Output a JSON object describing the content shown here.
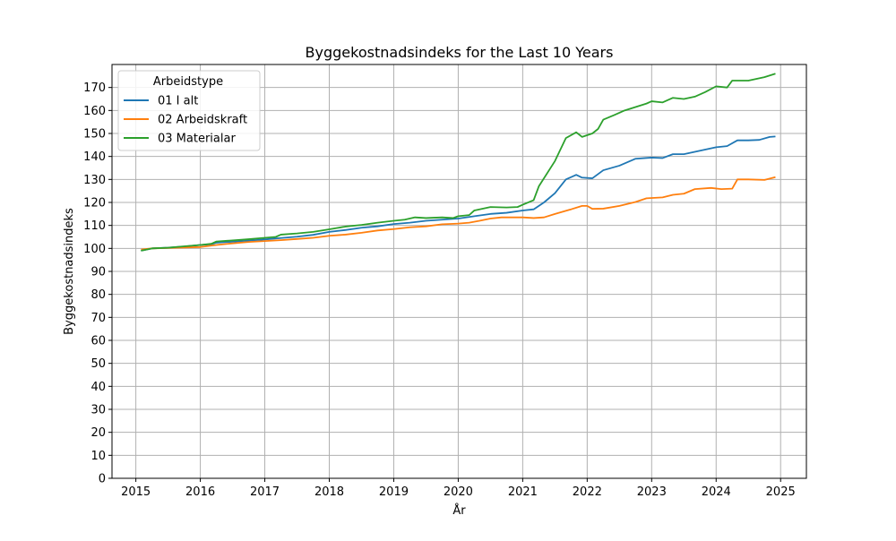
{
  "chart_data": {
    "type": "line",
    "title": "Byggekostnadsindeks for the Last 10 Years",
    "xlabel": "År",
    "ylabel": "Byggekostnadsindeks",
    "xlim": [
      2014.63,
      2025.4
    ],
    "ylim": [
      0,
      180
    ],
    "xticks": [
      2015,
      2016,
      2017,
      2018,
      2019,
      2020,
      2021,
      2022,
      2023,
      2024,
      2025
    ],
    "yticks": [
      0,
      10,
      20,
      30,
      40,
      50,
      60,
      70,
      80,
      90,
      100,
      110,
      120,
      130,
      140,
      150,
      160,
      170
    ],
    "grid": true,
    "legend": {
      "title": "Arbeidstype",
      "placement": "upper-left"
    },
    "series": [
      {
        "name": "01 I alt",
        "color": "#1f77b4",
        "points": [
          [
            2015.08,
            99.0
          ],
          [
            2015.25,
            100.0
          ],
          [
            2015.5,
            100.3
          ],
          [
            2015.75,
            100.8
          ],
          [
            2016.0,
            101.5
          ],
          [
            2016.17,
            101.8
          ],
          [
            2016.25,
            102.5
          ],
          [
            2016.5,
            102.9
          ],
          [
            2016.75,
            103.4
          ],
          [
            2017.0,
            103.9
          ],
          [
            2017.25,
            104.5
          ],
          [
            2017.5,
            105.1
          ],
          [
            2017.75,
            105.9
          ],
          [
            2018.0,
            107.2
          ],
          [
            2018.25,
            108.0
          ],
          [
            2018.5,
            109.0
          ],
          [
            2018.75,
            109.6
          ],
          [
            2019.0,
            110.6
          ],
          [
            2019.25,
            111.2
          ],
          [
            2019.5,
            112.0
          ],
          [
            2019.75,
            112.5
          ],
          [
            2020.0,
            113.0
          ],
          [
            2020.25,
            114.0
          ],
          [
            2020.5,
            115.0
          ],
          [
            2020.75,
            115.5
          ],
          [
            2021.0,
            116.5
          ],
          [
            2021.17,
            117.0
          ],
          [
            2021.33,
            120.0
          ],
          [
            2021.5,
            124.0
          ],
          [
            2021.67,
            130.0
          ],
          [
            2021.83,
            132.0
          ],
          [
            2021.92,
            130.8
          ],
          [
            2022.08,
            130.5
          ],
          [
            2022.25,
            134.0
          ],
          [
            2022.5,
            136.0
          ],
          [
            2022.75,
            139.0
          ],
          [
            2023.0,
            139.5
          ],
          [
            2023.17,
            139.3
          ],
          [
            2023.33,
            141.0
          ],
          [
            2023.5,
            141.0
          ],
          [
            2023.75,
            142.5
          ],
          [
            2024.0,
            144.0
          ],
          [
            2024.17,
            144.5
          ],
          [
            2024.33,
            147.0
          ],
          [
            2024.5,
            147.0
          ],
          [
            2024.67,
            147.2
          ],
          [
            2024.83,
            148.5
          ],
          [
            2024.92,
            148.7
          ]
        ]
      },
      {
        "name": "02 Arbeidskraft",
        "color": "#ff7f0e",
        "points": [
          [
            2015.08,
            99.5
          ],
          [
            2015.25,
            100.0
          ],
          [
            2015.5,
            100.2
          ],
          [
            2015.75,
            100.4
          ],
          [
            2016.0,
            100.6
          ],
          [
            2016.25,
            101.5
          ],
          [
            2016.5,
            102.2
          ],
          [
            2016.75,
            102.8
          ],
          [
            2017.0,
            103.2
          ],
          [
            2017.25,
            103.6
          ],
          [
            2017.5,
            104.1
          ],
          [
            2017.75,
            104.6
          ],
          [
            2018.0,
            105.5
          ],
          [
            2018.25,
            106.0
          ],
          [
            2018.5,
            106.8
          ],
          [
            2018.75,
            107.8
          ],
          [
            2019.0,
            108.4
          ],
          [
            2019.25,
            109.2
          ],
          [
            2019.5,
            109.6
          ],
          [
            2019.75,
            110.5
          ],
          [
            2020.0,
            110.8
          ],
          [
            2020.17,
            111.2
          ],
          [
            2020.33,
            112.0
          ],
          [
            2020.5,
            113.0
          ],
          [
            2020.67,
            113.5
          ],
          [
            2021.0,
            113.5
          ],
          [
            2021.17,
            113.2
          ],
          [
            2021.33,
            113.5
          ],
          [
            2021.5,
            115.0
          ],
          [
            2021.75,
            117.0
          ],
          [
            2021.92,
            118.5
          ],
          [
            2022.0,
            118.5
          ],
          [
            2022.08,
            117.2
          ],
          [
            2022.25,
            117.3
          ],
          [
            2022.5,
            118.5
          ],
          [
            2022.75,
            120.2
          ],
          [
            2022.92,
            121.8
          ],
          [
            2023.17,
            122.2
          ],
          [
            2023.33,
            123.3
          ],
          [
            2023.5,
            123.8
          ],
          [
            2023.67,
            125.8
          ],
          [
            2023.92,
            126.3
          ],
          [
            2024.08,
            125.8
          ],
          [
            2024.25,
            126.0
          ],
          [
            2024.33,
            130.0
          ],
          [
            2024.5,
            130.0
          ],
          [
            2024.75,
            129.8
          ],
          [
            2024.92,
            131.0
          ]
        ]
      },
      {
        "name": "03 Materialar",
        "color": "#2ca02c",
        "points": [
          [
            2015.08,
            99.0
          ],
          [
            2015.25,
            100.0
          ],
          [
            2015.5,
            100.3
          ],
          [
            2015.75,
            100.9
          ],
          [
            2016.0,
            101.5
          ],
          [
            2016.17,
            102.0
          ],
          [
            2016.25,
            103.0
          ],
          [
            2016.5,
            103.5
          ],
          [
            2016.75,
            104.0
          ],
          [
            2017.0,
            104.6
          ],
          [
            2017.17,
            105.0
          ],
          [
            2017.25,
            106.0
          ],
          [
            2017.5,
            106.5
          ],
          [
            2017.75,
            107.2
          ],
          [
            2018.0,
            108.3
          ],
          [
            2018.25,
            109.5
          ],
          [
            2018.5,
            110.2
          ],
          [
            2018.75,
            111.2
          ],
          [
            2019.0,
            112.0
          ],
          [
            2019.17,
            112.5
          ],
          [
            2019.33,
            113.5
          ],
          [
            2019.5,
            113.2
          ],
          [
            2019.75,
            113.5
          ],
          [
            2019.92,
            113.2
          ],
          [
            2020.0,
            114.0
          ],
          [
            2020.17,
            114.5
          ],
          [
            2020.25,
            116.5
          ],
          [
            2020.42,
            117.5
          ],
          [
            2020.5,
            118.0
          ],
          [
            2020.75,
            117.8
          ],
          [
            2020.92,
            118.0
          ],
          [
            2021.0,
            119.0
          ],
          [
            2021.17,
            121.0
          ],
          [
            2021.25,
            127.0
          ],
          [
            2021.5,
            138.0
          ],
          [
            2021.67,
            148.0
          ],
          [
            2021.83,
            150.5
          ],
          [
            2021.92,
            148.5
          ],
          [
            2022.08,
            150.0
          ],
          [
            2022.17,
            152.0
          ],
          [
            2022.25,
            156.0
          ],
          [
            2022.42,
            158.0
          ],
          [
            2022.58,
            160.0
          ],
          [
            2022.75,
            161.5
          ],
          [
            2022.92,
            163.0
          ],
          [
            2023.0,
            164.0
          ],
          [
            2023.17,
            163.5
          ],
          [
            2023.33,
            165.5
          ],
          [
            2023.5,
            165.0
          ],
          [
            2023.67,
            166.0
          ],
          [
            2023.83,
            168.0
          ],
          [
            2024.0,
            170.5
          ],
          [
            2024.17,
            170.0
          ],
          [
            2024.25,
            173.0
          ],
          [
            2024.5,
            173.0
          ],
          [
            2024.75,
            174.5
          ],
          [
            2024.92,
            176.0
          ]
        ]
      }
    ]
  }
}
